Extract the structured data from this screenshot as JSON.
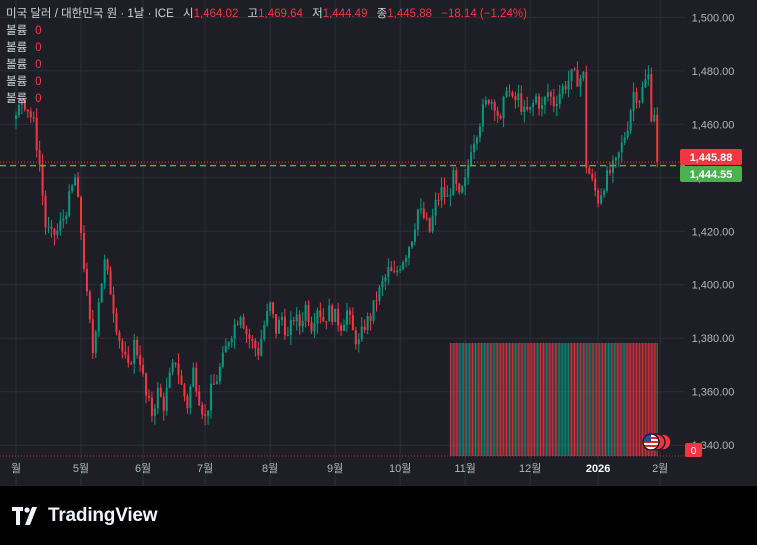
{
  "legend": {
    "title": "미국 달러 / 대한민국 원 · 1날 · ICE",
    "open_label": "시",
    "open": "1,464.02",
    "high_label": "고",
    "high": "1,469.64",
    "low_label": "저",
    "low": "1,444.49",
    "close_label": "종",
    "close": "1,445.88",
    "change": "−18.14 (−1.24%)",
    "volume_rows": [
      {
        "label": "볼륨",
        "value": "0"
      },
      {
        "label": "볼륨",
        "value": "0"
      },
      {
        "label": "볼륨",
        "value": "0"
      },
      {
        "label": "볼륨",
        "value": "0"
      },
      {
        "label": "볼륨",
        "value": "0"
      }
    ]
  },
  "price_badges": {
    "last_price": "1,445.88",
    "last_price_value": 1445.88,
    "bid_price": "1,444.55",
    "bid_price_value": 1444.55,
    "volume_zero": "0"
  },
  "brand": {
    "name": "TradingView"
  },
  "colors": {
    "up": "#089981",
    "down": "#f23645",
    "background": "#1e1f26",
    "bid_line": "#4caf50",
    "text": "#d1d4dc"
  },
  "chart_data": {
    "type": "candlestick",
    "symbol": "USD/KRW",
    "interval": "1 day",
    "ylim": [
      1332,
      1502
    ],
    "y_ticks": [
      1340,
      1360,
      1380,
      1400,
      1420,
      1440,
      1460,
      1480,
      1500
    ],
    "y_tick_labels": [
      "1,340.00",
      "1,360.00",
      "1,380.00",
      "1,400.00",
      "1,420.00",
      "1,440.00",
      "1,460.00",
      "1,480.00",
      "1,500.00"
    ],
    "x_tick_labels": [
      "월",
      "5월",
      "6월",
      "7월",
      "8월",
      "9월",
      "10월",
      "11월",
      "12월",
      "2026",
      "2월"
    ],
    "x_tick_bold": [
      "2026"
    ],
    "x_tick_days": [
      0,
      22,
      43,
      64,
      86,
      108,
      130,
      152,
      174,
      197,
      218
    ],
    "day_range": [
      -2,
      222
    ],
    "close_path": [
      [
        0,
        1462
      ],
      [
        2,
        1470
      ],
      [
        4,
        1466
      ],
      [
        6,
        1460
      ],
      [
        8,
        1445
      ],
      [
        10,
        1422
      ],
      [
        12,
        1418
      ],
      [
        14,
        1420
      ],
      [
        16,
        1425
      ],
      [
        18,
        1432
      ],
      [
        20,
        1440
      ],
      [
        22,
        1420
      ],
      [
        24,
        1395
      ],
      [
        26,
        1375
      ],
      [
        28,
        1395
      ],
      [
        30,
        1408
      ],
      [
        32,
        1398
      ],
      [
        34,
        1385
      ],
      [
        36,
        1375
      ],
      [
        38,
        1368
      ],
      [
        40,
        1378
      ],
      [
        42,
        1372
      ],
      [
        44,
        1358
      ],
      [
        46,
        1352
      ],
      [
        48,
        1360
      ],
      [
        50,
        1355
      ],
      [
        52,
        1365
      ],
      [
        54,
        1372
      ],
      [
        56,
        1362
      ],
      [
        58,
        1355
      ],
      [
        60,
        1368
      ],
      [
        62,
        1358
      ],
      [
        64,
        1350
      ],
      [
        66,
        1360
      ],
      [
        68,
        1365
      ],
      [
        70,
        1372
      ],
      [
        72,
        1380
      ],
      [
        74,
        1385
      ],
      [
        76,
        1390
      ],
      [
        78,
        1382
      ],
      [
        80,
        1378
      ],
      [
        82,
        1375
      ],
      [
        84,
        1385
      ],
      [
        86,
        1392
      ],
      [
        88,
        1383
      ],
      [
        90,
        1388
      ],
      [
        92,
        1380
      ],
      [
        94,
        1388
      ],
      [
        96,
        1385
      ],
      [
        98,
        1392
      ],
      [
        100,
        1385
      ],
      [
        102,
        1392
      ],
      [
        104,
        1387
      ],
      [
        106,
        1390
      ],
      [
        108,
        1388
      ],
      [
        110,
        1385
      ],
      [
        112,
        1390
      ],
      [
        114,
        1382
      ],
      [
        116,
        1378
      ],
      [
        118,
        1385
      ],
      [
        120,
        1388
      ],
      [
        122,
        1395
      ],
      [
        124,
        1400
      ],
      [
        126,
        1405
      ],
      [
        128,
        1403
      ],
      [
        130,
        1408
      ],
      [
        132,
        1412
      ],
      [
        134,
        1418
      ],
      [
        136,
        1428
      ],
      [
        138,
        1425
      ],
      [
        140,
        1420
      ],
      [
        142,
        1430
      ],
      [
        144,
        1435
      ],
      [
        146,
        1432
      ],
      [
        148,
        1440
      ],
      [
        150,
        1432
      ],
      [
        152,
        1438
      ],
      [
        154,
        1452
      ],
      [
        156,
        1458
      ],
      [
        158,
        1465
      ],
      [
        160,
        1470
      ],
      [
        162,
        1468
      ],
      [
        164,
        1460
      ],
      [
        166,
        1475
      ],
      [
        168,
        1468
      ],
      [
        170,
        1470
      ],
      [
        172,
        1464
      ],
      [
        174,
        1465
      ],
      [
        176,
        1470
      ],
      [
        178,
        1466
      ],
      [
        180,
        1472
      ],
      [
        182,
        1468
      ],
      [
        184,
        1472
      ],
      [
        186,
        1475
      ],
      [
        188,
        1478
      ],
      [
        190,
        1477
      ],
      [
        192,
        1478
      ],
      [
        193,
        1445
      ],
      [
        195,
        1438
      ],
      [
        197,
        1432
      ],
      [
        199,
        1438
      ],
      [
        201,
        1442
      ],
      [
        203,
        1445
      ],
      [
        205,
        1452
      ],
      [
        207,
        1460
      ],
      [
        209,
        1472
      ],
      [
        211,
        1470
      ],
      [
        213,
        1476
      ],
      [
        214,
        1478
      ],
      [
        215,
        1464
      ],
      [
        216,
        1465
      ],
      [
        217,
        1445.88
      ]
    ],
    "volume_label": "볼륨",
    "volume_values": "0"
  }
}
